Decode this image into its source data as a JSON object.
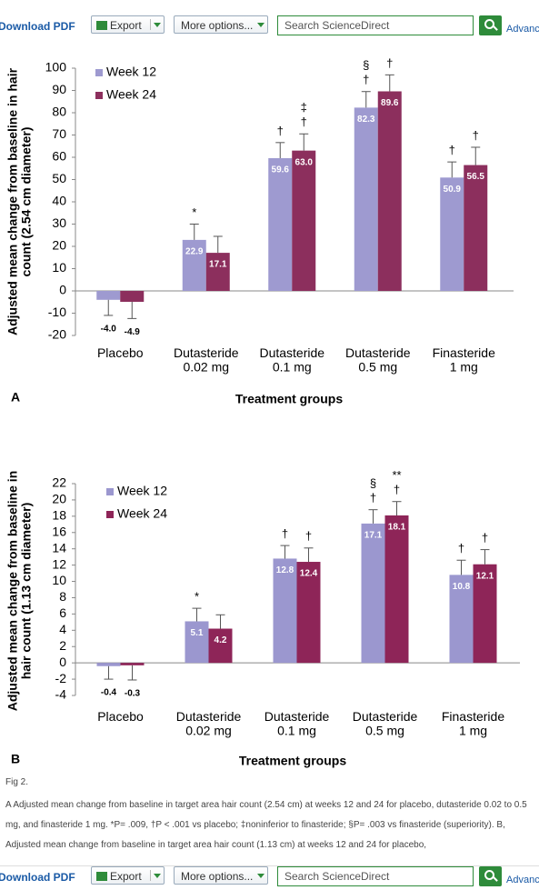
{
  "toolbar_top": {
    "download": "Download PDF",
    "export": "Export",
    "more": "More options...",
    "search": "Search ScienceDirect",
    "advanced": "Advanced"
  },
  "chart_data": [
    {
      "type": "bar",
      "panel": "A",
      "x_label": "Treatment groups",
      "y_label": "Adjusted mean change from baseline in hair\ncount (2.54 cm diameter)",
      "categories": [
        "Placebo",
        "Dutasteride\n0.02 mg",
        "Dutasteride\n0.1 mg",
        "Dutasteride\n0.5 mg",
        "Finasteride\n1 mg"
      ],
      "series": [
        {
          "name": "Week 12",
          "color": "#9e9ad0",
          "values": [
            -4.0,
            22.9,
            59.6,
            82.3,
            50.9
          ],
          "value_labels": [
            "-4.0",
            "22.9",
            "59.6",
            "82.3",
            "50.9"
          ],
          "errors": [
            7,
            7.1,
            7,
            7.2,
            7
          ],
          "markers": [
            null,
            [
              "*"
            ],
            [
              "†"
            ],
            [
              "§",
              "†"
            ],
            [
              "†"
            ]
          ]
        },
        {
          "name": "Week 24",
          "color": "#8c2f5d",
          "values": [
            -4.9,
            17.1,
            63.0,
            89.6,
            56.5
          ],
          "value_labels": [
            "-4.9",
            "17.1",
            "63.0",
            "89.6",
            "56.5"
          ],
          "errors": [
            7.5,
            7.4,
            7.5,
            7.4,
            8
          ],
          "markers": [
            null,
            null,
            [
              "‡",
              "†"
            ],
            [
              "†"
            ],
            [
              "†"
            ]
          ]
        }
      ],
      "ylim": [
        -20,
        100
      ],
      "yticks": [
        -20,
        -10,
        0,
        10,
        20,
        30,
        40,
        50,
        60,
        70,
        80,
        90,
        100
      ]
    },
    {
      "type": "bar",
      "panel": "B",
      "x_label": "Treatment groups",
      "y_label": "Adjusted mean change from baseline in\nhair count (1.13 cm diameter)",
      "categories": [
        "Placebo",
        "Dutasteride\n0.02 mg",
        "Dutasteride\n0.1 mg",
        "Dutasteride\n0.5 mg",
        "Finasteride\n1 mg"
      ],
      "series": [
        {
          "name": "Week 12",
          "color": "#9b97cf",
          "values": [
            -0.4,
            5.1,
            12.8,
            17.1,
            10.8
          ],
          "value_labels": [
            "-0.4",
            "5.1",
            "12.8",
            "17.1",
            "10.8"
          ],
          "errors": [
            1.6,
            1.6,
            1.6,
            1.7,
            1.8
          ],
          "markers": [
            null,
            [
              "*"
            ],
            [
              "†"
            ],
            [
              "§",
              "†"
            ],
            [
              "†"
            ]
          ]
        },
        {
          "name": "Week 24",
          "color": "#8e2558",
          "values": [
            -0.3,
            4.2,
            12.4,
            18.1,
            12.1
          ],
          "value_labels": [
            "-0.3",
            "4.2",
            "12.4",
            "18.1",
            "12.1"
          ],
          "errors": [
            1.8,
            1.7,
            1.7,
            1.7,
            1.8
          ],
          "markers": [
            null,
            null,
            [
              "†"
            ],
            [
              "**",
              "†"
            ],
            [
              "†"
            ]
          ]
        }
      ],
      "ylim": [
        -4,
        22
      ],
      "yticks": [
        -4,
        -2,
        0,
        2,
        4,
        6,
        8,
        10,
        12,
        14,
        16,
        18,
        20,
        22
      ]
    }
  ],
  "caption": {
    "label": "Fig 2.",
    "text": "A Adjusted mean change from baseline in target area hair count (2.54 cm) at weeks 12 and 24 for placebo, dutasteride 0.02 to 0.5 mg, and finasteride 1 mg. *P= .009, †P < .001 vs placebo; ‡noninferior to finasteride; §P= .003 vs finasteride (superiority). B, Adjusted mean change from baseline in target area hair count (1.13 cm) at weeks 12 and 24 for placebo,"
  },
  "toolbar_bottom": {
    "download": "Download PDF",
    "export": "Export",
    "more": "More options...",
    "search": "Search ScienceDirect",
    "advanced": "Advanced"
  }
}
